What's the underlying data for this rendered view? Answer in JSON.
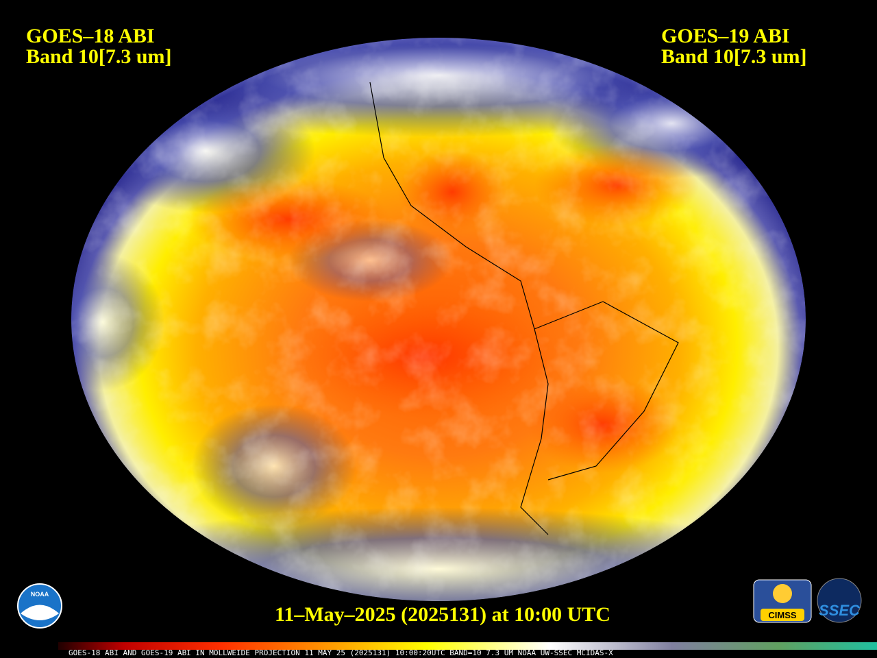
{
  "header": {
    "left": {
      "satellite": "GOES–18 ABI",
      "band": "Band 10[7.3 um]"
    },
    "right": {
      "satellite": "GOES–19 ABI",
      "band": "Band 10[7.3 um]"
    }
  },
  "timestamp": "11–May–2025 (2025131) at 10:00 UTC",
  "footer": "GOES-18 ABI AND GOES-19 ABI IN MOLLWEIDE PROJECTION 11 MAY 25 (2025131) 10:00:20UTC BAND=10 7.3 UM NOAA UW-SSEC MCIDAS-X",
  "logos": {
    "noaa": "NOAA",
    "cimss": "CIMSS",
    "ssec": "SSEC"
  }
}
